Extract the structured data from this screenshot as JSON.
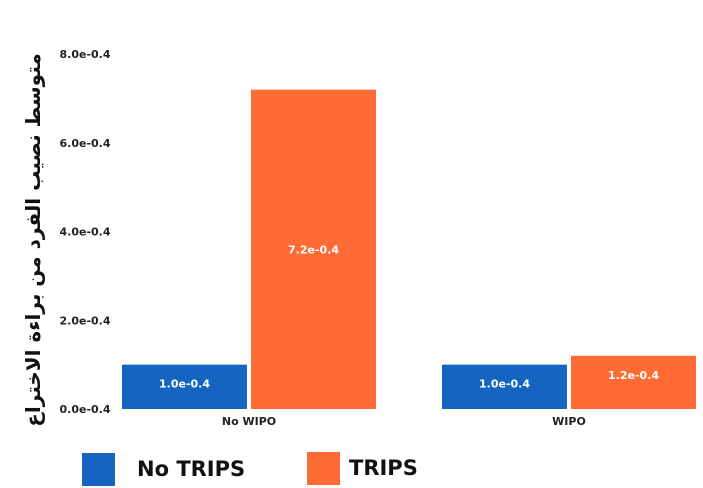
{
  "chart_data": {
    "type": "bar",
    "title": "",
    "xlabel": "",
    "ylabel": "متوسط نصيب الفرد من براءة الاختراع",
    "categories": [
      "No WIPO",
      "WIPO"
    ],
    "series": [
      {
        "name": "No TRIPS",
        "values": [
          1.0,
          1.0
        ],
        "value_labels": [
          "1.0e-0.4",
          "1.0e-0.4"
        ],
        "color": "#1565c0"
      },
      {
        "name": "TRIPS",
        "values": [
          7.2,
          1.2
        ],
        "value_labels": [
          "7.2e-0.4",
          "1.2e-0.4"
        ],
        "color": "#ff6b35"
      }
    ],
    "ylim": [
      0,
      8.5
    ],
    "yticks": [
      0,
      2,
      4,
      6,
      8
    ],
    "ytick_labels": [
      "0.0e-0.4",
      "2.0e-0.4",
      "4.0e-0.4",
      "6.0e-0.4",
      "8.0e-0.4"
    ],
    "grid": false,
    "legend": "bottom-left"
  }
}
